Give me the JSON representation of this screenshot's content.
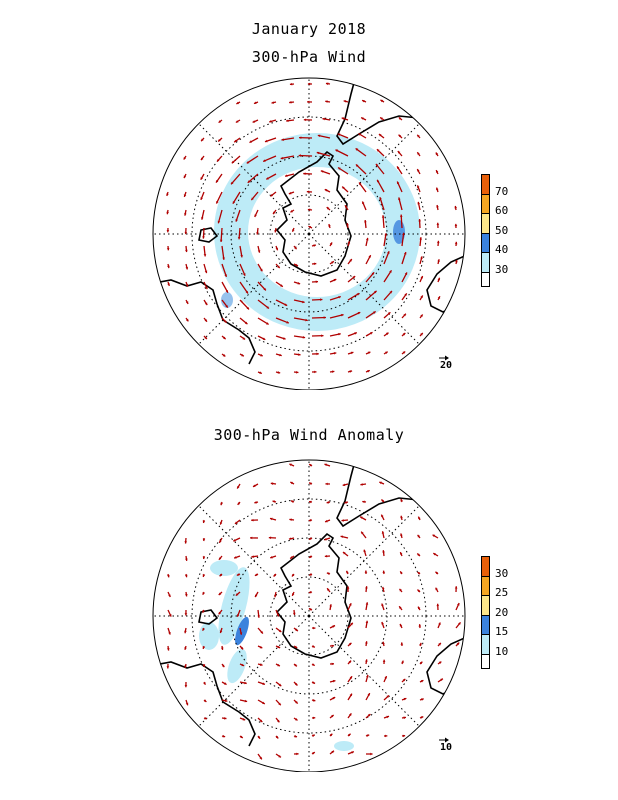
{
  "figure": {
    "title": "January 2018"
  },
  "panels": [
    {
      "title": "300-hPa Wind",
      "reference_vector": "20",
      "colorbar": {
        "ticks": [
          "70",
          "60",
          "50",
          "40",
          "30"
        ],
        "colors": [
          "#e8600a",
          "#f5a623",
          "#fde68a",
          "#3b82dc",
          "#bdebf7",
          "#ffffff"
        ]
      },
      "jet": {
        "type": "ring",
        "strength": "strong"
      }
    },
    {
      "title": "300-hPa Wind Anomaly",
      "reference_vector": "10",
      "colorbar": {
        "ticks": [
          "30",
          "25",
          "20",
          "15",
          "10"
        ],
        "colors": [
          "#e8600a",
          "#f5a623",
          "#fde68a",
          "#3b82dc",
          "#bdebf7",
          "#ffffff"
        ]
      },
      "jet": {
        "type": "patchy",
        "strength": "weak"
      }
    }
  ],
  "colors": {
    "vectors": "#b00000",
    "coast": "#000000",
    "grid": "#000000"
  }
}
